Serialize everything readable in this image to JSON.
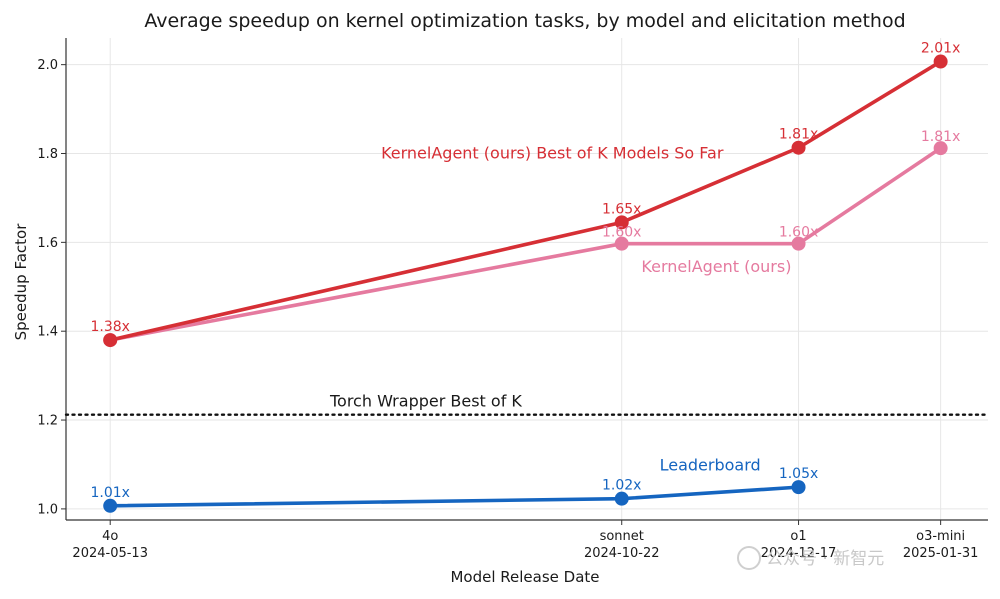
{
  "chart_data": {
    "type": "line",
    "title": "Average speedup on kernel optimization tasks, by model and elicitation method",
    "xlabel": "Model Release Date",
    "ylabel": "Speedup Factor",
    "ylim": [
      0.975,
      2.06
    ],
    "yticks": [
      "1.0",
      "1.2",
      "1.4",
      "1.6",
      "1.8",
      "2.0"
    ],
    "grid": true,
    "x_categories": [
      {
        "model": "4o",
        "date": "2024-05-13",
        "day": 0
      },
      {
        "model": "sonnet",
        "date": "2024-10-22",
        "day": 162
      },
      {
        "model": "o1",
        "date": "2024-12-17",
        "day": 218
      },
      {
        "model": "o3-mini",
        "date": "2025-01-31",
        "day": 263
      }
    ],
    "xlim": [
      -14,
      278
    ],
    "series": [
      {
        "name": "KernelAgent (ours) Best of K Models So Far",
        "color": "#d62f35",
        "x": [
          0,
          162,
          218,
          263
        ],
        "values": [
          1.38,
          1.645,
          1.813,
          2.007
        ],
        "labels": [
          "1.38x",
          "1.65x",
          "1.81x",
          "2.01x"
        ]
      },
      {
        "name": "KernelAgent (ours)",
        "color": "#e57a9f",
        "x": [
          0,
          162,
          218,
          263
        ],
        "values": [
          1.38,
          1.597,
          1.597,
          1.812
        ],
        "labels": [
          "",
          "1.60x",
          "1.60x",
          "1.81x"
        ]
      },
      {
        "name": "Leaderboard",
        "color": "#1565c0",
        "x": [
          0,
          162,
          218
        ],
        "values": [
          1.007,
          1.023,
          1.049
        ],
        "labels": [
          "1.01x",
          "1.02x",
          "1.05x"
        ]
      }
    ],
    "reference_line": {
      "name": "Torch Wrapper Best of K",
      "value": 1.212,
      "style": "dotted",
      "color": "#111111"
    }
  },
  "watermark": {
    "text": "公众号 · 新智元"
  }
}
